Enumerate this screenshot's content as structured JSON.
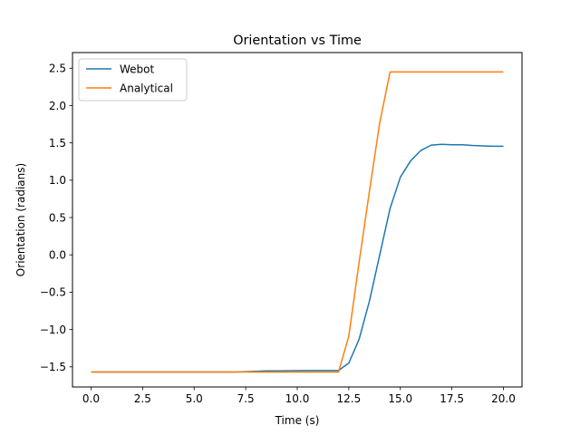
{
  "chart_data": {
    "type": "line",
    "title": "Orientation vs Time",
    "xlabel": "Time (s)",
    "ylabel": "Orientation (radians)",
    "xlim": [
      -0.9,
      20.9
    ],
    "ylim": [
      -1.77,
      2.71
    ],
    "xticks": [
      0.0,
      2.5,
      5.0,
      7.5,
      10.0,
      12.5,
      15.0,
      17.5,
      20.0
    ],
    "xtick_labels": [
      "0.0",
      "2.5",
      "5.0",
      "7.5",
      "10.0",
      "12.5",
      "15.0",
      "17.5",
      "20.0"
    ],
    "yticks": [
      -1.5,
      -1.0,
      -0.5,
      0.0,
      0.5,
      1.0,
      1.5,
      2.0,
      2.5
    ],
    "ytick_labels": [
      "−1.5",
      "−1.0",
      "−0.5",
      "0.0",
      "0.5",
      "1.0",
      "1.5",
      "2.0",
      "2.5"
    ],
    "grid": false,
    "legend": "top-left",
    "series": [
      {
        "name": "Webot",
        "color": "#1f77b4",
        "x": [
          0,
          0.5,
          1,
          1.5,
          2,
          2.5,
          3,
          3.5,
          4,
          4.5,
          5,
          5.5,
          6,
          6.5,
          7,
          7.5,
          8,
          8.5,
          9,
          9.5,
          10,
          10.5,
          11,
          11.5,
          12,
          12.5,
          13,
          13.5,
          14,
          14.5,
          15,
          15.5,
          16,
          16.5,
          17,
          17.5,
          18,
          18.5,
          19,
          19.5,
          20
        ],
        "y": [
          -1.57,
          -1.57,
          -1.57,
          -1.57,
          -1.57,
          -1.57,
          -1.57,
          -1.57,
          -1.57,
          -1.57,
          -1.57,
          -1.57,
          -1.57,
          -1.57,
          -1.57,
          -1.565,
          -1.56,
          -1.555,
          -1.555,
          -1.553,
          -1.552,
          -1.55,
          -1.55,
          -1.55,
          -1.55,
          -1.45,
          -1.13,
          -0.62,
          0.0,
          0.62,
          1.04,
          1.26,
          1.4,
          1.47,
          1.48,
          1.475,
          1.475,
          1.465,
          1.46,
          1.455,
          1.455
        ]
      },
      {
        "name": "Analytical",
        "color": "#ff7f0e",
        "x": [
          0,
          1,
          2,
          3,
          4,
          5,
          6,
          7,
          8,
          9,
          10,
          11,
          12,
          12.5,
          13,
          13.5,
          14,
          14.5,
          15,
          16,
          17,
          18,
          19,
          20
        ],
        "y": [
          -1.57,
          -1.57,
          -1.57,
          -1.57,
          -1.57,
          -1.57,
          -1.57,
          -1.57,
          -1.57,
          -1.57,
          -1.57,
          -1.57,
          -1.57,
          -1.09,
          -0.1,
          0.85,
          1.77,
          2.45,
          2.45,
          2.45,
          2.45,
          2.45,
          2.45,
          2.45
        ]
      }
    ]
  }
}
